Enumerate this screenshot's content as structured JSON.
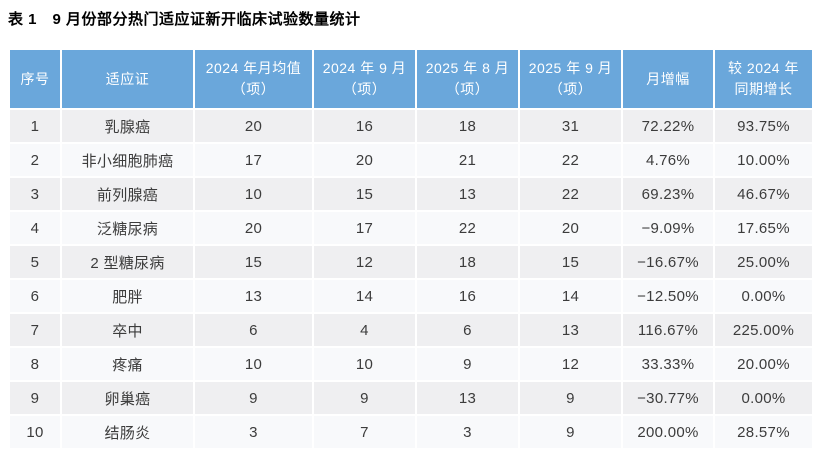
{
  "page": {
    "title": "表 1　9 月份部分热门适应证新开临床试验数量统计"
  },
  "colors": {
    "header_bg": "#6aa7db",
    "header_text": "#ffffff",
    "row_odd_bg": "#efeff1",
    "row_even_bg": "#f8f9fb",
    "cell_text": "#3c3c3c",
    "title_text": "#000000"
  },
  "chart_data": {
    "type": "table",
    "title": "表 1　9 月份部分热门适应证新开临床试验数量统计",
    "columns": [
      "序号",
      "适应证",
      "2024 年月均值（项）",
      "2024 年 9 月（项）",
      "2025 年 8 月（项）",
      "2025 年 9 月（项）",
      "月增幅",
      "较 2024 年同期增长"
    ],
    "header_lines": [
      [
        "序号"
      ],
      [
        "适应证"
      ],
      [
        "2024 年月均值",
        "（项）"
      ],
      [
        "2024 年 9 月",
        "（项）"
      ],
      [
        "2025 年 8 月",
        "（项）"
      ],
      [
        "2025 年 9 月",
        "（项）"
      ],
      [
        "月增幅"
      ],
      [
        "较 2024 年",
        "同期增长"
      ]
    ],
    "rows": [
      [
        "1",
        "乳腺癌",
        "20",
        "16",
        "18",
        "31",
        "72.22%",
        "93.75%"
      ],
      [
        "2",
        "非小细胞肺癌",
        "17",
        "20",
        "21",
        "22",
        "4.76%",
        "10.00%"
      ],
      [
        "3",
        "前列腺癌",
        "10",
        "15",
        "13",
        "22",
        "69.23%",
        "46.67%"
      ],
      [
        "4",
        "泛糖尿病",
        "20",
        "17",
        "22",
        "20",
        "−9.09%",
        "17.65%"
      ],
      [
        "5",
        "2 型糖尿病",
        "15",
        "12",
        "18",
        "15",
        "−16.67%",
        "25.00%"
      ],
      [
        "6",
        "肥胖",
        "13",
        "14",
        "16",
        "14",
        "−12.50%",
        "0.00%"
      ],
      [
        "7",
        "卒中",
        "6",
        "4",
        "6",
        "13",
        "116.67%",
        "225.00%"
      ],
      [
        "8",
        "疼痛",
        "10",
        "10",
        "9",
        "12",
        "33.33%",
        "20.00%"
      ],
      [
        "9",
        "卵巢癌",
        "9",
        "9",
        "13",
        "9",
        "−30.77%",
        "0.00%"
      ],
      [
        "10",
        "结肠炎",
        "3",
        "7",
        "3",
        "9",
        "200.00%",
        "28.57%"
      ]
    ]
  }
}
